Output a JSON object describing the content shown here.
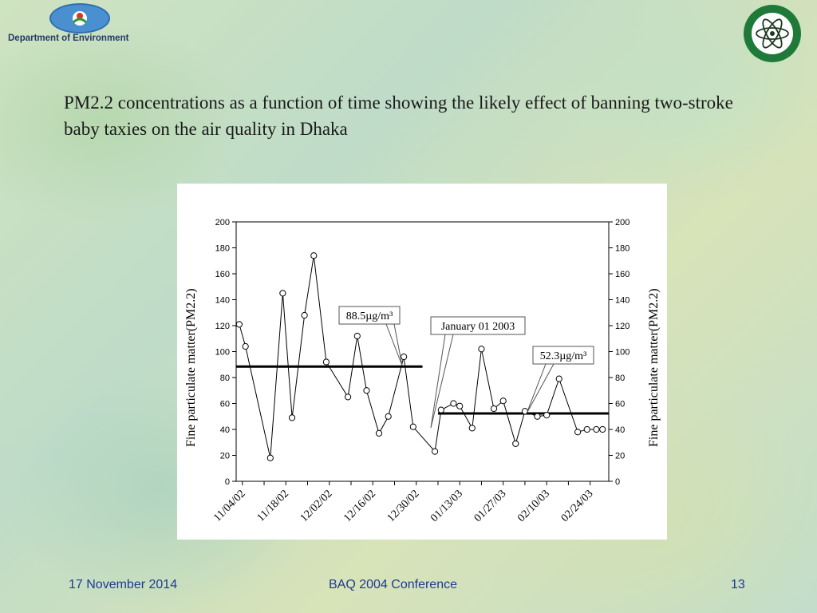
{
  "header": {
    "org_name": "Department of Environment",
    "title": "PM2.2 concentrations as a function of time showing the likely effect of banning two-stroke baby taxies on the air quality in Dhaka"
  },
  "footer": {
    "date": "17 November 2014",
    "event": "BAQ 2004 Conference",
    "page": "13"
  },
  "colors": {
    "line": "#000000",
    "marker_fill": "#ffffff",
    "footer_text": "#1c3a94"
  },
  "icons": {
    "left_logo": "department-of-environment-logo",
    "right_logo": "atomic-energy-commission-seal"
  },
  "chart_data": {
    "type": "line",
    "xlabel": "",
    "ylabel": "Fine particulate matter(PM2.2)",
    "ylabel_right": "Fine particulate matter(PM2.2)",
    "ylim": [
      0,
      200
    ],
    "yticks": [
      0,
      20,
      40,
      60,
      80,
      100,
      120,
      140,
      160,
      180,
      200
    ],
    "x_tick_labels": [
      "11/04/02",
      "11/18/02",
      "12/02/02",
      "12/16/02",
      "12/30/02",
      "01/13/03",
      "01/27/03",
      "02/10/03",
      "02/24/03"
    ],
    "x_tick_dates": [
      "2002-11-04",
      "2002-11-18",
      "2002-12-02",
      "2002-12-16",
      "2002-12-30",
      "2003-01-13",
      "2003-01-27",
      "2003-02-10",
      "2003-02-24"
    ],
    "grid": false,
    "series": [
      {
        "x": [
          "2002-11-03",
          "2002-11-05",
          "2002-11-13",
          "2002-11-17",
          "2002-11-20",
          "2002-11-24",
          "2002-11-27",
          "2002-12-01",
          "2002-12-08",
          "2002-12-11",
          "2002-12-14",
          "2002-12-18",
          "2002-12-21",
          "2002-12-26",
          "2002-12-29",
          "2003-01-05",
          "2003-01-07",
          "2003-01-11",
          "2003-01-13",
          "2003-01-17",
          "2003-01-20",
          "2003-01-24",
          "2003-01-27",
          "2003-01-31",
          "2003-02-03",
          "2003-02-07",
          "2003-02-10",
          "2003-02-14",
          "2003-02-20",
          "2003-02-23",
          "2003-02-26",
          "2003-02-28"
        ],
        "values": [
          121,
          104,
          18,
          145,
          49,
          128,
          174,
          92,
          65,
          112,
          70,
          37,
          50,
          96,
          42,
          23,
          55,
          60,
          58,
          41,
          102,
          56,
          62,
          29,
          54,
          50,
          51,
          79,
          38,
          40,
          40,
          40
        ]
      }
    ],
    "averages": [
      {
        "label": "88.5µg/m³",
        "value": 88.5,
        "from": "2002-11-02",
        "to": "2003-01-01"
      },
      {
        "label": "52.3µg/m³",
        "value": 52.3,
        "from": "2003-01-06",
        "to": "2003-03-02"
      }
    ],
    "annotations": [
      {
        "text": "88.5µg/m³"
      },
      {
        "text": "January 01 2003"
      },
      {
        "text": "52.3µg/m³"
      }
    ]
  }
}
